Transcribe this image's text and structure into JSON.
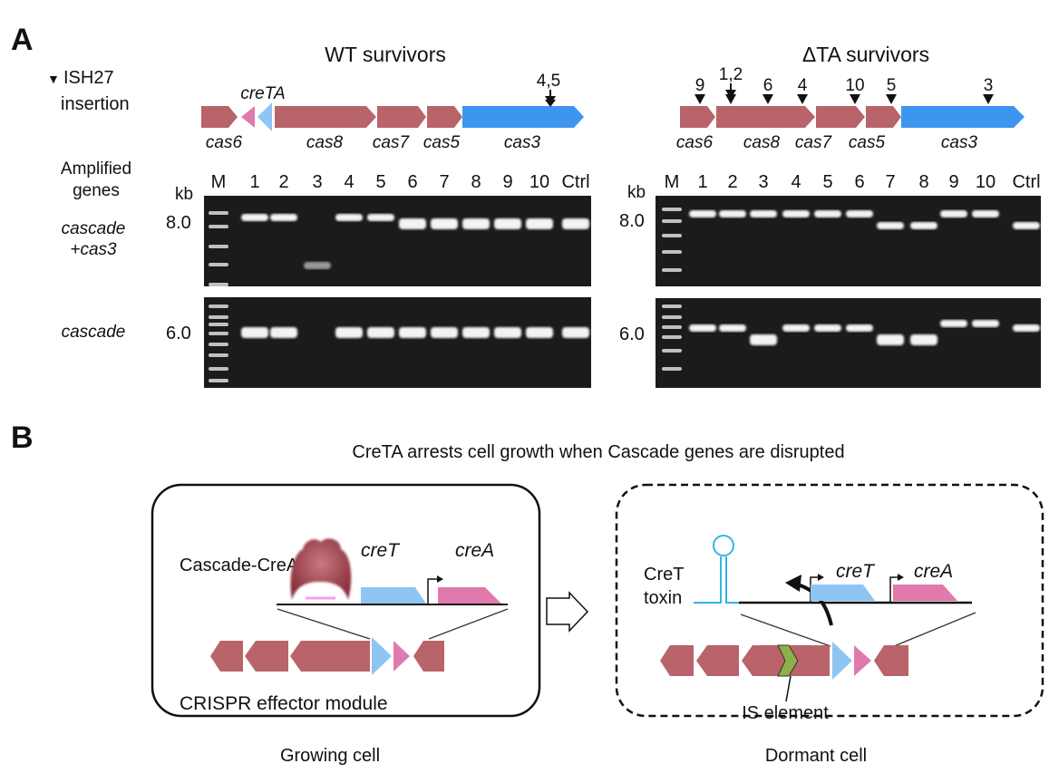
{
  "panel_a": {
    "label": "A",
    "legend_marker": "▼",
    "legend_line1": "ISH27",
    "legend_line2": "insertion",
    "amplified_line1": "Amplified",
    "amplified_line2": "genes",
    "row1_line1": "cascade",
    "row1_line2": "+cas3",
    "row2": "cascade",
    "kb": "kb",
    "marker_top": "8.0",
    "marker_bottom": "6.0",
    "lanes": [
      "M",
      "1",
      "2",
      "3",
      "4",
      "5",
      "6",
      "7",
      "8",
      "9",
      "10",
      "Ctrl"
    ],
    "wt": {
      "title": "WT survivors",
      "creTA_label": "creTA",
      "genes": [
        "cas6",
        "cas8",
        "cas7",
        "cas5",
        "cas3"
      ],
      "insertions": [
        {
          "label": "4,5",
          "gene": "cas3"
        }
      ],
      "gel_top_bands": [
        "upper",
        "upper",
        "short",
        "upper",
        "upper",
        "mid",
        "mid",
        "mid",
        "mid",
        "mid",
        "mid"
      ],
      "gel_bottom_bands": [
        "mid",
        "mid",
        "none",
        "mid",
        "mid",
        "mid",
        "mid",
        "mid",
        "mid",
        "mid",
        "mid"
      ]
    },
    "dta": {
      "title": "ΔTA survivors",
      "genes": [
        "cas6",
        "cas8",
        "cas7",
        "cas5",
        "cas3"
      ],
      "insertions": [
        {
          "label": "9",
          "gene": "cas6"
        },
        {
          "label": "1,2",
          "gene": "cas8"
        },
        {
          "label": "6",
          "gene": "cas8"
        },
        {
          "label": "4",
          "gene": "cas8"
        },
        {
          "label": "10",
          "gene": "cas7"
        },
        {
          "label": "5",
          "gene": "cas5"
        },
        {
          "label": "3",
          "gene": "cas3"
        }
      ],
      "gel_top_bands": [
        "upper",
        "upper",
        "upper",
        "upper",
        "upper",
        "upper",
        "mid",
        "mid",
        "upper",
        "upper",
        "mid"
      ],
      "gel_bottom_bands": [
        "mid",
        "mid",
        "low",
        "mid",
        "mid",
        "mid",
        "low",
        "low",
        "high",
        "high",
        "mid"
      ]
    }
  },
  "panel_b": {
    "label": "B",
    "title": "CreTA arrests cell growth when Cascade genes are disrupted",
    "growing": {
      "complex_label": "Cascade-CreA",
      "creT": "creT",
      "creA": "creA",
      "module_label": "CRISPR effector module",
      "caption": "Growing cell"
    },
    "dormant": {
      "toxin_line1": "CreT",
      "toxin_line2": "toxin",
      "creT": "creT",
      "creA": "creA",
      "is_label": "IS element",
      "caption": "Dormant cell"
    }
  },
  "colors": {
    "cas_red": "#b9636b",
    "cas3_blue": "#3d95f0",
    "creT_blue": "#8ec5f3",
    "creA_pink": "#e07aac",
    "is_green": "#8db04a",
    "hairpin": "#33b5e5",
    "gel": "#1b1b1b"
  }
}
